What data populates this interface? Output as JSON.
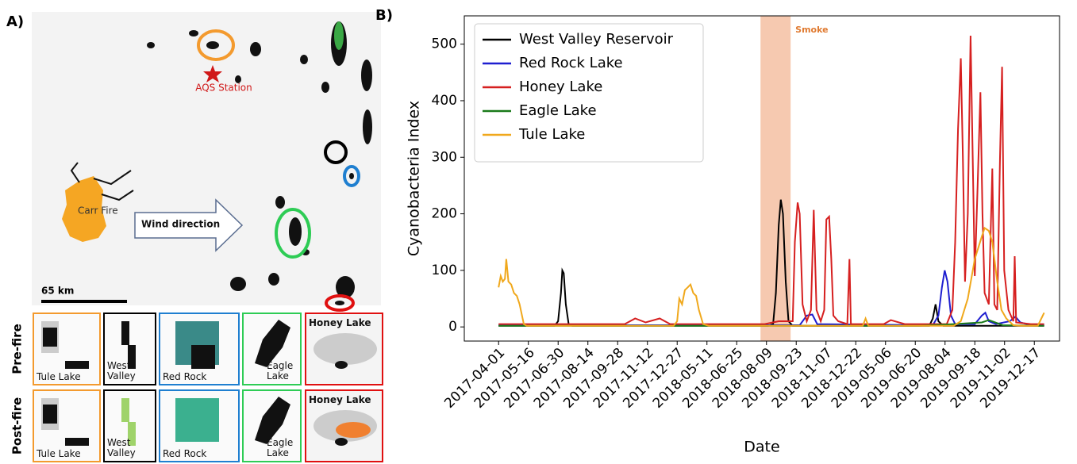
{
  "panel_a": {
    "label": "A)",
    "station": "AQS Station",
    "fire": "Carr Fire",
    "wind": "Wind direction",
    "scale": "65 km",
    "rows": [
      "Pre-fire",
      "Post-fire"
    ],
    "thumbnails": [
      [
        "Tule Lake",
        "West Valley",
        "Red Rock",
        "Eagle Lake",
        "Honey Lake"
      ],
      [
        "Tule Lake",
        "West Valley",
        "Red Rock",
        "Eagle Lake",
        "Honey Lake"
      ]
    ]
  },
  "chart_data": {
    "type": "line",
    "panel_label": "B)",
    "x_label": "Date",
    "y_label": "Cyanobacteria Index",
    "xlim": [
      -49,
      801
    ],
    "ylim": [
      -25,
      550
    ],
    "yticks": [
      0,
      100,
      200,
      300,
      400,
      500
    ],
    "xticks": [
      {
        "value": 0,
        "label": "2017-04-01"
      },
      {
        "value": 42.5,
        "label": "2017-05-16"
      },
      {
        "value": 85,
        "label": "2017-06-30"
      },
      {
        "value": 127.5,
        "label": "2017-08-14"
      },
      {
        "value": 170,
        "label": "2017-09-28"
      },
      {
        "value": 212.5,
        "label": "2017-11-12"
      },
      {
        "value": 255,
        "label": "2017-12-27"
      },
      {
        "value": 297.5,
        "label": "2018-05-11"
      },
      {
        "value": 340,
        "label": "2018-06-25"
      },
      {
        "value": 382.5,
        "label": "2018-08-09"
      },
      {
        "value": 425,
        "label": "2018-09-23"
      },
      {
        "value": 467.5,
        "label": "2018-11-07"
      },
      {
        "value": 510,
        "label": "2018-12-22"
      },
      {
        "value": 552.5,
        "label": "2019-05-06"
      },
      {
        "value": 595,
        "label": "2019-06-20"
      },
      {
        "value": 637.5,
        "label": "2019-08-04"
      },
      {
        "value": 680,
        "label": "2019-09-18"
      },
      {
        "value": 722.5,
        "label": "2019-11-02"
      },
      {
        "value": 765,
        "label": "2019-12-17"
      }
    ],
    "smoke": {
      "label": "Smoke",
      "x": [
        374,
        417
      ],
      "color": "#f6c9b0"
    },
    "legend": "upper left",
    "series": [
      {
        "name": "West Valley Reservoir",
        "color": "#000000",
        "x": [
          0,
          80,
          85,
          89,
          91,
          93,
          96,
          100,
          105,
          385,
          392,
          396,
          400,
          403,
          406,
          410,
          414,
          420,
          615,
          620,
          624,
          628,
          635,
          779
        ],
        "values": [
          2,
          2,
          10,
          60,
          100,
          95,
          40,
          5,
          2,
          2,
          5,
          60,
          180,
          225,
          200,
          80,
          10,
          2,
          2,
          15,
          40,
          10,
          2,
          2
        ]
      },
      {
        "name": "Red Rock Lake",
        "color": "#1f1fd0",
        "x": [
          0,
          430,
          440,
          448,
          455,
          620,
          628,
          633,
          637,
          641,
          646,
          652,
          680,
          690,
          695,
          700,
          710,
          730,
          738,
          745,
          760,
          779
        ],
        "values": [
          3,
          3,
          20,
          22,
          5,
          3,
          20,
          70,
          100,
          80,
          20,
          5,
          5,
          20,
          25,
          10,
          5,
          10,
          18,
          8,
          3,
          3
        ]
      },
      {
        "name": "Honey Lake",
        "color": "#d62020",
        "x": [
          0,
          180,
          195,
          210,
          230,
          245,
          380,
          400,
          420,
          423,
          427,
          430,
          434,
          440,
          446,
          450,
          454,
          460,
          465,
          468,
          472,
          475,
          478,
          485,
          498,
          501,
          503,
          550,
          560,
          580,
          640,
          648,
          652,
          656,
          660,
          663,
          666,
          670,
          674,
          677,
          680,
          684,
          688,
          691,
          694,
          700,
          705,
          708,
          712,
          716,
          719,
          722,
          728,
          735,
          737,
          739,
          760,
          779
        ],
        "values": [
          5,
          5,
          15,
          8,
          15,
          5,
          5,
          10,
          10,
          150,
          220,
          200,
          40,
          10,
          30,
          207,
          30,
          10,
          30,
          190,
          195,
          120,
          20,
          10,
          5,
          120,
          5,
          5,
          12,
          5,
          5,
          30,
          150,
          350,
          475,
          300,
          80,
          200,
          515,
          300,
          90,
          250,
          415,
          200,
          60,
          40,
          280,
          40,
          30,
          300,
          460,
          100,
          30,
          10,
          125,
          8,
          5,
          5
        ]
      },
      {
        "name": "Eagle Lake",
        "color": "#1a7a1a",
        "x": [
          0,
          600,
          650,
          690,
          700,
          720,
          779
        ],
        "values": [
          2,
          2,
          5,
          8,
          12,
          3,
          2
        ]
      },
      {
        "name": "Tule Lake",
        "color": "#f0a81c",
        "x": [
          0,
          3,
          6,
          9,
          11,
          14,
          18,
          22,
          26,
          30,
          36,
          40,
          250,
          255,
          258,
          262,
          266,
          270,
          274,
          278,
          282,
          286,
          292,
          300,
          520,
          524,
          528,
          650,
          660,
          670,
          680,
          690,
          694,
          700,
          705,
          712,
          718,
          725,
          735,
          745,
          770,
          775,
          779
        ],
        "values": [
          70,
          90,
          80,
          85,
          120,
          80,
          75,
          60,
          55,
          40,
          5,
          2,
          2,
          10,
          50,
          40,
          65,
          70,
          75,
          60,
          55,
          30,
          5,
          2,
          2,
          15,
          2,
          2,
          10,
          50,
          120,
          160,
          175,
          170,
          150,
          80,
          30,
          15,
          3,
          2,
          2,
          15,
          25
        ]
      }
    ]
  }
}
